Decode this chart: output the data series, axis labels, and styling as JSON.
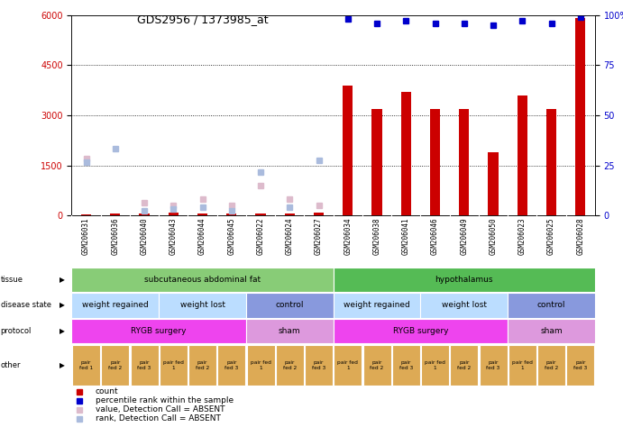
{
  "title": "GDS2956 / 1373985_at",
  "samples": [
    "GSM206031",
    "GSM206036",
    "GSM206040",
    "GSM206043",
    "GSM206044",
    "GSM206045",
    "GSM206022",
    "GSM206024",
    "GSM206027",
    "GSM206034",
    "GSM206038",
    "GSM206041",
    "GSM206046",
    "GSM206049",
    "GSM206050",
    "GSM206023",
    "GSM206025",
    "GSM206028"
  ],
  "n_samples": 18,
  "red_bars": [
    50,
    60,
    70,
    80,
    60,
    55,
    70,
    65,
    80,
    3900,
    3200,
    3700,
    3200,
    3200,
    1900,
    3600,
    3200,
    5900
  ],
  "blue_dark_pct": [
    null,
    null,
    null,
    null,
    null,
    null,
    null,
    null,
    null,
    98,
    96,
    97,
    96,
    96,
    95,
    97,
    96,
    99
  ],
  "blue_light_val": [
    1700,
    null,
    400,
    300,
    500,
    300,
    900,
    500,
    300,
    null,
    null,
    null,
    null,
    null,
    null,
    null,
    null,
    null
  ],
  "blue_light_rank": [
    1600,
    2000,
    150,
    200,
    250,
    150,
    1300,
    250,
    1650,
    null,
    null,
    null,
    null,
    null,
    null,
    null,
    null,
    null
  ],
  "ylim_left": [
    0,
    6000
  ],
  "ylim_right": [
    0,
    100
  ],
  "yticks_left": [
    0,
    1500,
    3000,
    4500,
    6000
  ],
  "yticks_right_vals": [
    0,
    25,
    50,
    75,
    100
  ],
  "yticks_right_labels": [
    "0",
    "25",
    "50",
    "75",
    "100%"
  ],
  "grid_lines": [
    1500,
    3000,
    4500
  ],
  "tissue_groups": [
    {
      "label": "subcutaneous abdominal fat",
      "start": 0,
      "end": 9,
      "color": "#88cc77"
    },
    {
      "label": "hypothalamus",
      "start": 9,
      "end": 18,
      "color": "#55bb55"
    }
  ],
  "disease_groups": [
    {
      "label": "weight regained",
      "start": 0,
      "end": 3,
      "color": "#bbddff"
    },
    {
      "label": "weight lost",
      "start": 3,
      "end": 6,
      "color": "#bbddff"
    },
    {
      "label": "control",
      "start": 6,
      "end": 9,
      "color": "#8899dd"
    },
    {
      "label": "weight regained",
      "start": 9,
      "end": 12,
      "color": "#bbddff"
    },
    {
      "label": "weight lost",
      "start": 12,
      "end": 15,
      "color": "#bbddff"
    },
    {
      "label": "control",
      "start": 15,
      "end": 18,
      "color": "#8899dd"
    }
  ],
  "protocol_groups": [
    {
      "label": "RYGB surgery",
      "start": 0,
      "end": 6,
      "color": "#ee44ee"
    },
    {
      "label": "sham",
      "start": 6,
      "end": 9,
      "color": "#dd99dd"
    },
    {
      "label": "RYGB surgery",
      "start": 9,
      "end": 15,
      "color": "#ee44ee"
    },
    {
      "label": "sham",
      "start": 15,
      "end": 18,
      "color": "#dd99dd"
    }
  ],
  "other_labels": [
    "pair\nfed 1",
    "pair\nfed 2",
    "pair\nfed 3",
    "pair fed\n1",
    "pair\nfed 2",
    "pair\nfed 3",
    "pair fed\n1",
    "pair\nfed 2",
    "pair\nfed 3",
    "pair fed\n1",
    "pair\nfed 2",
    "pair\nfed 3",
    "pair fed\n1",
    "pair\nfed 2",
    "pair\nfed 3",
    "pair fed\n1",
    "pair\nfed 2",
    "pair\nfed 3"
  ],
  "other_color": "#ddaa55",
  "bar_color": "#cc0000",
  "blue_dark_color": "#0000cc",
  "blue_light_val_color": "#ddbbcc",
  "blue_light_rank_color": "#aabbdd",
  "label_bg": "#cccccc",
  "row_label_names": [
    "tissue",
    "disease state",
    "protocol",
    "other"
  ],
  "legend_items": [
    {
      "color": "#cc0000",
      "label": "count"
    },
    {
      "color": "#0000cc",
      "label": "percentile rank within the sample"
    },
    {
      "color": "#ddbbcc",
      "label": "value, Detection Call = ABSENT"
    },
    {
      "color": "#aabbdd",
      "label": "rank, Detection Call = ABSENT"
    }
  ]
}
